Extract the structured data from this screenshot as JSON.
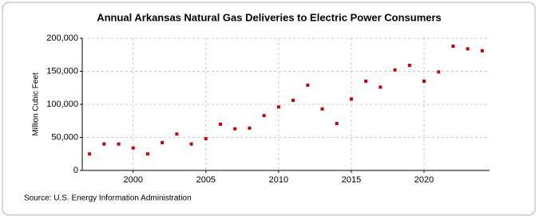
{
  "chart_data": {
    "type": "scatter",
    "title": "Annual Arkansas Natural Gas Deliveries to Electric Power Consumers",
    "y_label": "Million Cubic Feet",
    "source": "Source: U.S. Energy Information Administration",
    "color": "#cc0000",
    "x": [
      1997,
      1998,
      1999,
      2000,
      2001,
      2002,
      2003,
      2004,
      2005,
      2006,
      2007,
      2008,
      2009,
      2010,
      2011,
      2012,
      2013,
      2014,
      2015,
      2016,
      2017,
      2018,
      2019,
      2020,
      2021,
      2022,
      2023,
      2024
    ],
    "values": [
      25000,
      40000,
      40000,
      34000,
      25000,
      42000,
      55000,
      40000,
      48000,
      70000,
      63000,
      64000,
      83000,
      96000,
      106000,
      129000,
      93000,
      71000,
      108000,
      135000,
      126000,
      152000,
      159000,
      135000,
      149000,
      188000,
      184000,
      181000
    ],
    "xlim": [
      1996.5,
      2024.5
    ],
    "xticks": [
      2000,
      2005,
      2010,
      2015,
      2020
    ],
    "ylim": [
      0,
      200000
    ],
    "yticks": [
      0,
      {
        "value": 50000,
        "label": "50,000"
      },
      {
        "value": 100000,
        "label": "100,000"
      },
      {
        "value": 150000,
        "label": "150,000"
      },
      {
        "value": 200000,
        "label": "200,000"
      }
    ],
    "grid": true
  }
}
